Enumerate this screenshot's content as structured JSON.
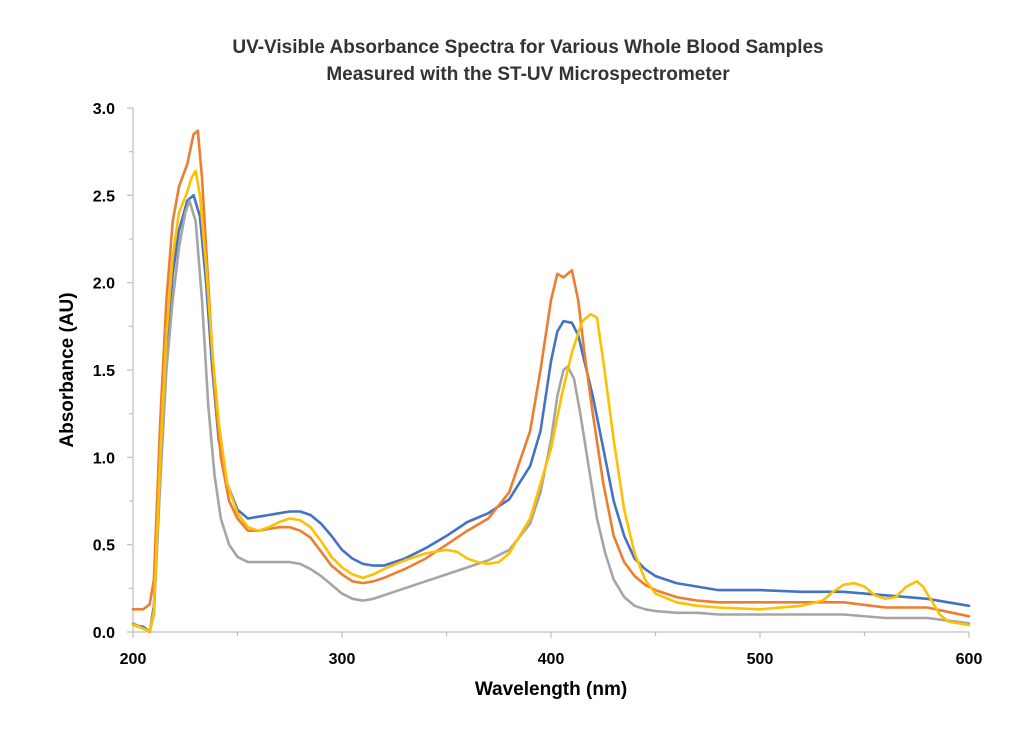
{
  "chart_data": {
    "type": "line",
    "title": "UV-Visible Absorbance Spectra for Various Whole Blood Samples",
    "subtitle": "Measured with the ST-UV Microspectrometer",
    "xlabel": "Wavelength (nm)",
    "ylabel": "Absorbance (AU)",
    "xlim": [
      200,
      600
    ],
    "ylim": [
      0,
      3.0
    ],
    "xticks": [
      "200",
      "300",
      "400",
      "500",
      "600"
    ],
    "yticks": [
      "0.0",
      "0.5",
      "1.0",
      "1.5",
      "2.0",
      "2.5",
      "3.0"
    ],
    "grid": false,
    "legend": "none",
    "series": [
      {
        "color": "#4472c4",
        "x": [
          200,
          205,
          208,
          210,
          213,
          216,
          219,
          222,
          226,
          229,
          232,
          235,
          238,
          241,
          245,
          250,
          255,
          260,
          265,
          270,
          275,
          280,
          285,
          290,
          295,
          300,
          305,
          310,
          315,
          320,
          330,
          340,
          350,
          360,
          370,
          380,
          390,
          395,
          400,
          403,
          406,
          410,
          413,
          416,
          420,
          425,
          430,
          435,
          440,
          445,
          450,
          460,
          470,
          480,
          500,
          520,
          540,
          560,
          580,
          600
        ],
        "y": [
          0.04,
          0.03,
          0.0,
          0.15,
          0.9,
          1.6,
          2.05,
          2.3,
          2.47,
          2.5,
          2.38,
          2.0,
          1.5,
          1.1,
          0.85,
          0.7,
          0.65,
          0.66,
          0.67,
          0.68,
          0.69,
          0.69,
          0.67,
          0.62,
          0.55,
          0.47,
          0.42,
          0.39,
          0.38,
          0.38,
          0.42,
          0.48,
          0.55,
          0.63,
          0.68,
          0.76,
          0.95,
          1.15,
          1.55,
          1.72,
          1.78,
          1.77,
          1.7,
          1.55,
          1.35,
          1.05,
          0.75,
          0.55,
          0.42,
          0.36,
          0.32,
          0.28,
          0.26,
          0.24,
          0.24,
          0.23,
          0.23,
          0.21,
          0.19,
          0.15
        ]
      },
      {
        "color": "#ed7d31",
        "x": [
          200,
          205,
          208,
          210,
          213,
          216,
          219,
          222,
          226,
          229,
          231,
          233,
          236,
          239,
          242,
          246,
          250,
          255,
          260,
          265,
          270,
          275,
          280,
          285,
          290,
          295,
          300,
          305,
          310,
          315,
          320,
          330,
          340,
          350,
          360,
          370,
          380,
          390,
          395,
          400,
          403,
          406,
          410,
          413,
          416,
          420,
          425,
          430,
          435,
          440,
          445,
          450,
          460,
          470,
          480,
          500,
          520,
          540,
          560,
          580,
          600
        ],
        "y": [
          0.13,
          0.13,
          0.16,
          0.3,
          1.2,
          1.9,
          2.35,
          2.55,
          2.68,
          2.85,
          2.87,
          2.6,
          2.0,
          1.4,
          1.0,
          0.75,
          0.65,
          0.58,
          0.58,
          0.59,
          0.6,
          0.6,
          0.58,
          0.54,
          0.46,
          0.38,
          0.33,
          0.29,
          0.28,
          0.29,
          0.31,
          0.36,
          0.42,
          0.5,
          0.58,
          0.65,
          0.8,
          1.15,
          1.5,
          1.9,
          2.05,
          2.03,
          2.07,
          1.9,
          1.6,
          1.25,
          0.85,
          0.55,
          0.4,
          0.32,
          0.27,
          0.24,
          0.2,
          0.18,
          0.17,
          0.17,
          0.17,
          0.17,
          0.14,
          0.14,
          0.09
        ]
      },
      {
        "color": "#a5a5a5",
        "x": [
          200,
          205,
          208,
          210,
          213,
          216,
          219,
          222,
          225,
          227,
          230,
          233,
          236,
          239,
          242,
          246,
          250,
          255,
          260,
          265,
          270,
          275,
          280,
          285,
          290,
          295,
          300,
          305,
          310,
          315,
          320,
          330,
          340,
          350,
          360,
          370,
          380,
          390,
          395,
          400,
          403,
          406,
          408,
          411,
          414,
          418,
          422,
          426,
          430,
          435,
          440,
          445,
          450,
          460,
          470,
          480,
          500,
          520,
          540,
          560,
          580,
          600
        ],
        "y": [
          0.05,
          0.02,
          0.0,
          0.1,
          0.85,
          1.5,
          1.9,
          2.2,
          2.4,
          2.47,
          2.35,
          1.9,
          1.3,
          0.9,
          0.65,
          0.5,
          0.43,
          0.4,
          0.4,
          0.4,
          0.4,
          0.4,
          0.39,
          0.36,
          0.32,
          0.27,
          0.22,
          0.19,
          0.18,
          0.19,
          0.21,
          0.25,
          0.29,
          0.33,
          0.37,
          0.41,
          0.47,
          0.62,
          0.8,
          1.1,
          1.35,
          1.5,
          1.52,
          1.45,
          1.25,
          0.95,
          0.65,
          0.45,
          0.3,
          0.2,
          0.15,
          0.13,
          0.12,
          0.11,
          0.11,
          0.1,
          0.1,
          0.1,
          0.1,
          0.08,
          0.08,
          0.05
        ]
      },
      {
        "color": "#ffc000",
        "x": [
          200,
          205,
          208,
          210,
          213,
          216,
          219,
          222,
          226,
          228,
          230,
          232,
          235,
          238,
          241,
          245,
          250,
          255,
          260,
          265,
          270,
          275,
          280,
          285,
          290,
          295,
          300,
          305,
          310,
          315,
          320,
          330,
          340,
          350,
          355,
          360,
          365,
          370,
          375,
          380,
          390,
          400,
          405,
          410,
          415,
          419,
          422,
          425,
          430,
          435,
          440,
          445,
          450,
          460,
          470,
          480,
          500,
          520,
          530,
          535,
          540,
          545,
          550,
          555,
          560,
          565,
          570,
          575,
          578,
          582,
          586,
          590,
          595,
          600
        ],
        "y": [
          0.04,
          0.02,
          0.0,
          0.12,
          1.0,
          1.7,
          2.15,
          2.4,
          2.52,
          2.6,
          2.64,
          2.5,
          2.1,
          1.6,
          1.2,
          0.85,
          0.68,
          0.6,
          0.58,
          0.6,
          0.63,
          0.65,
          0.64,
          0.6,
          0.52,
          0.43,
          0.37,
          0.33,
          0.31,
          0.33,
          0.36,
          0.41,
          0.45,
          0.47,
          0.46,
          0.42,
          0.4,
          0.39,
          0.4,
          0.45,
          0.65,
          1.05,
          1.35,
          1.6,
          1.78,
          1.82,
          1.8,
          1.55,
          1.1,
          0.7,
          0.45,
          0.3,
          0.22,
          0.17,
          0.15,
          0.14,
          0.13,
          0.15,
          0.18,
          0.23,
          0.27,
          0.28,
          0.26,
          0.21,
          0.19,
          0.2,
          0.26,
          0.29,
          0.26,
          0.18,
          0.1,
          0.06,
          0.05,
          0.04
        ]
      }
    ]
  }
}
